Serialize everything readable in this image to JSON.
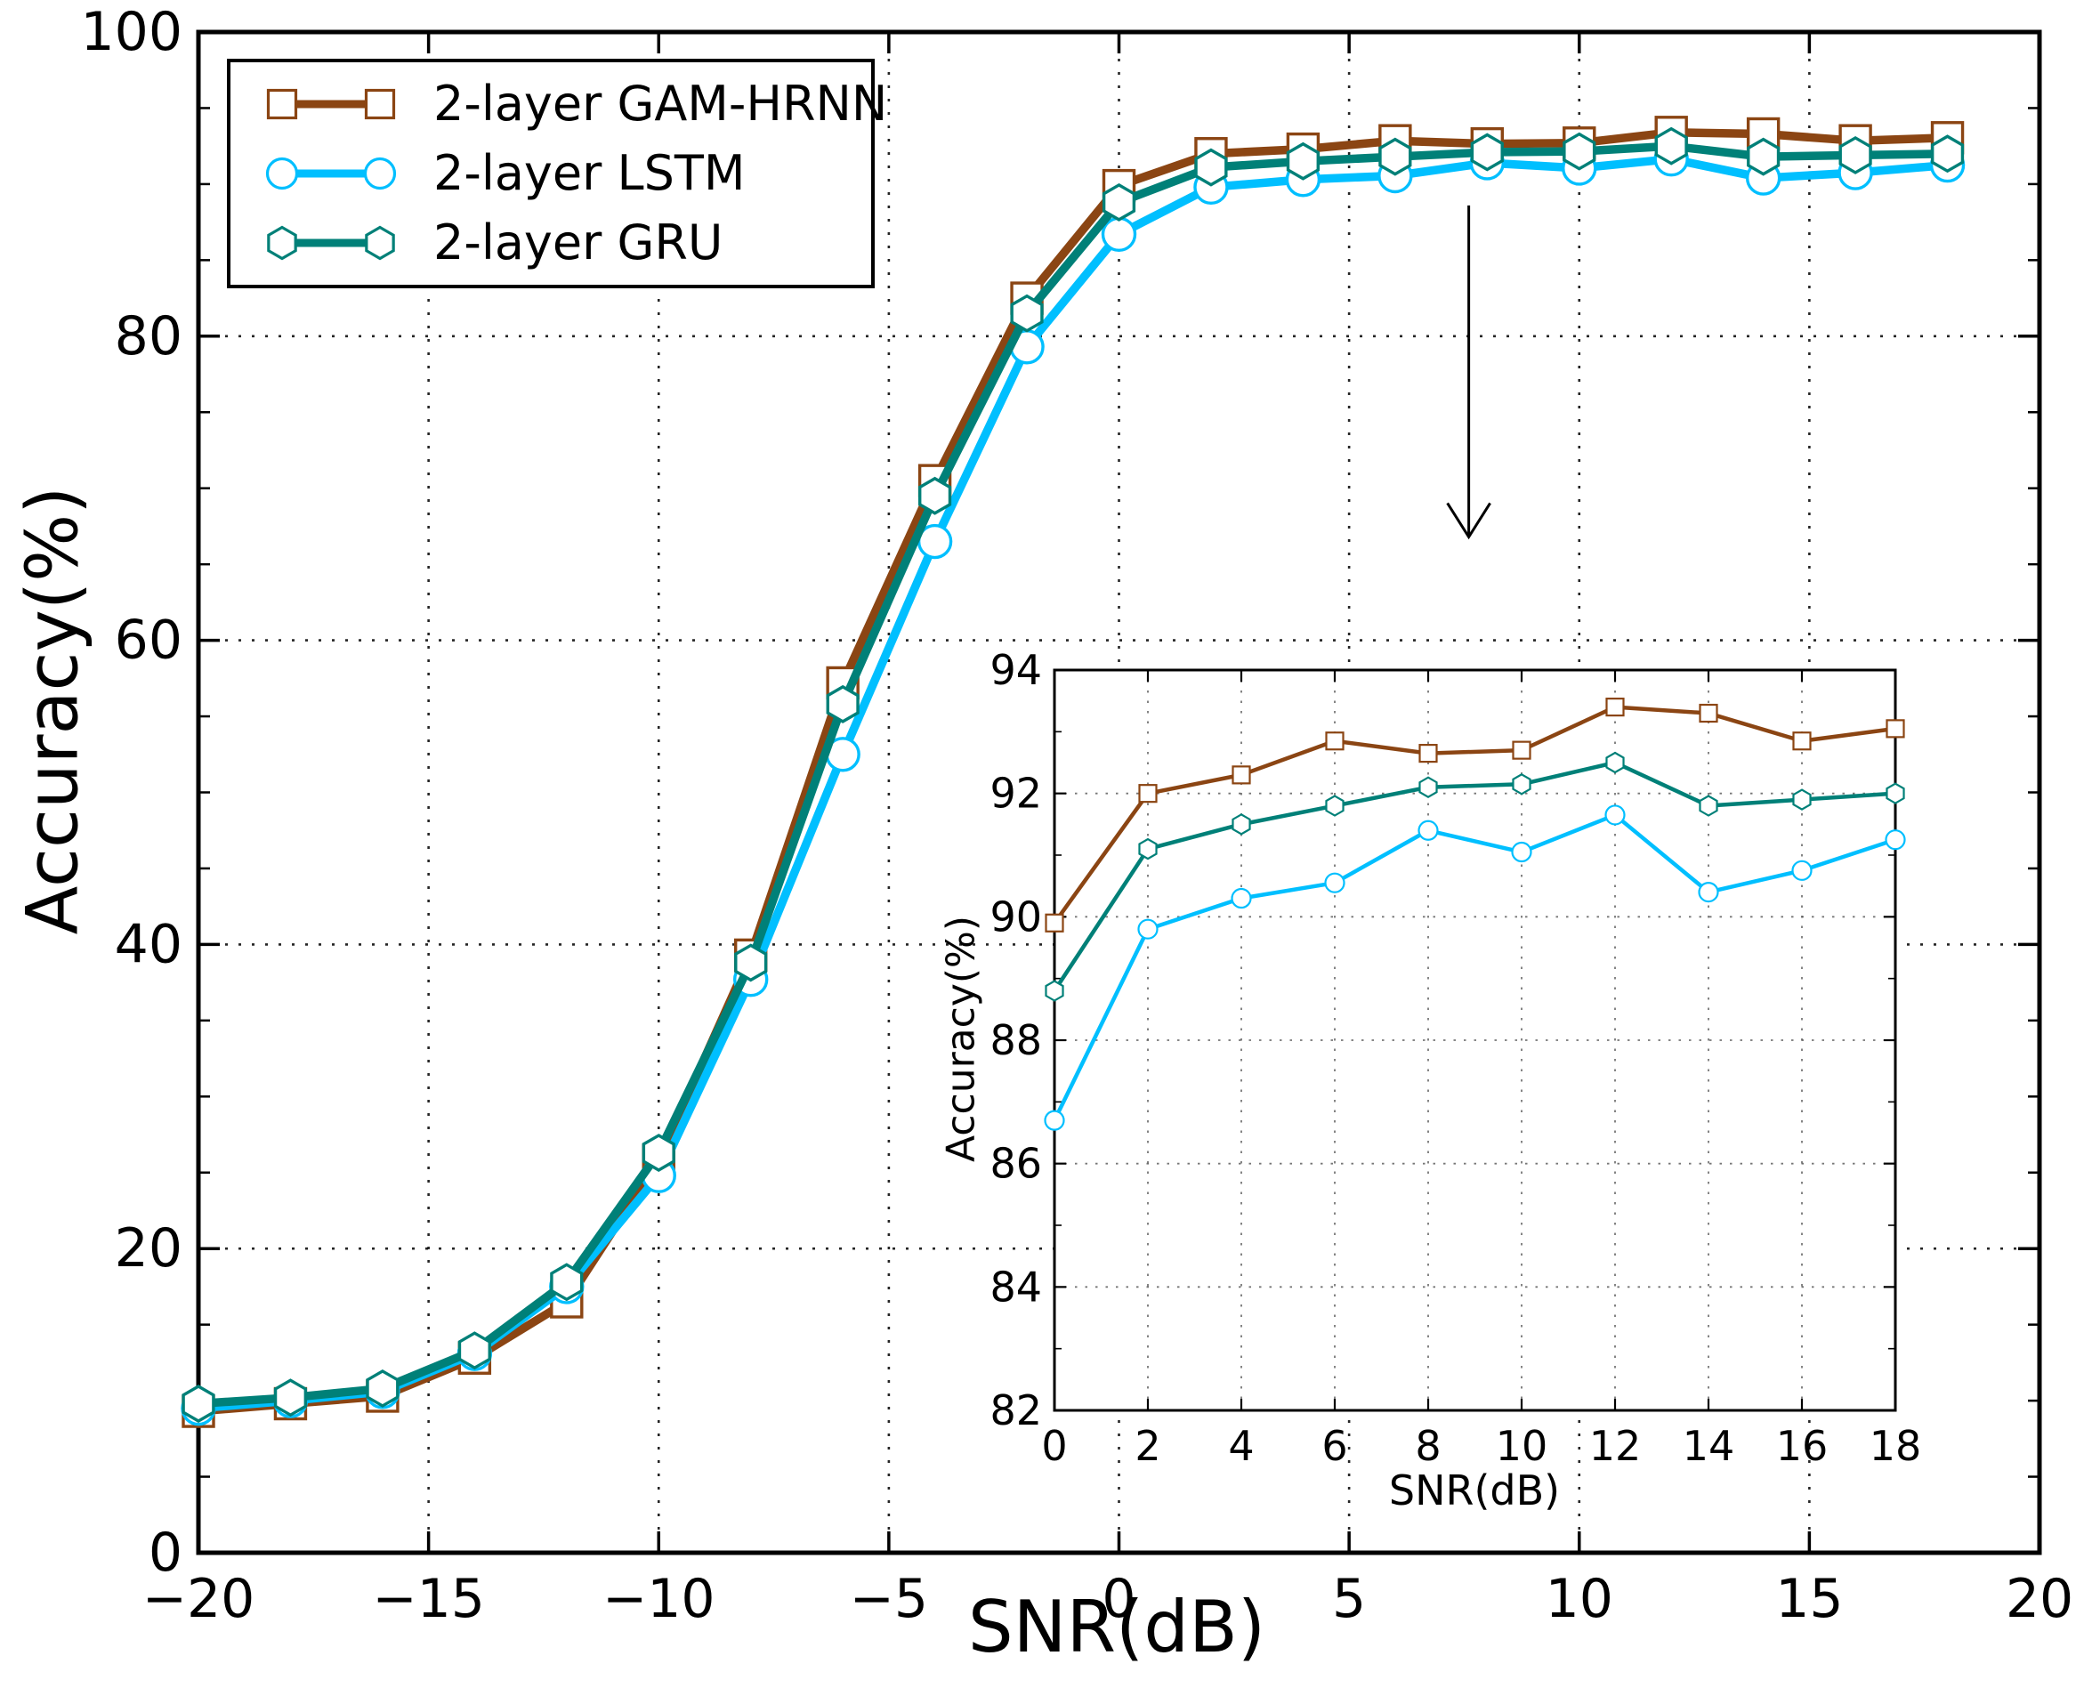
{
  "figure": {
    "title": ""
  },
  "colors": {
    "gam_hrnn": "#8B4513",
    "lstm": "#00BFFF",
    "gru": "#008078",
    "axis": "#000000",
    "background": "#ffffff"
  },
  "legend": {
    "position": "upper left"
  },
  "chart_data": {
    "type": "line",
    "title": "",
    "xlabel": "SNR(dB)",
    "ylabel": "Accuracy(%)",
    "xlim": [
      -20,
      20
    ],
    "ylim": [
      0,
      100
    ],
    "xticks": [
      -20,
      -15,
      -10,
      -5,
      0,
      5,
      10,
      15,
      20
    ],
    "yticks": [
      0,
      20,
      40,
      60,
      80,
      100
    ],
    "y_minor_step": 5,
    "grid": true,
    "x": [
      -20,
      -18,
      -16,
      -14,
      -12,
      -10,
      -8,
      -6,
      -4,
      -2,
      0,
      2,
      4,
      6,
      8,
      10,
      12,
      14,
      16,
      18
    ],
    "series": [
      {
        "name": "2-layer GAM-HRNN",
        "color": "#8B4513",
        "marker": "square",
        "values": [
          9.3,
          9.8,
          10.3,
          12.8,
          16.5,
          25.8,
          39.3,
          57.2,
          70.5,
          82.5,
          89.9,
          92.0,
          92.3,
          92.85,
          92.65,
          92.7,
          93.4,
          93.3,
          92.85,
          93.05
        ]
      },
      {
        "name": "2-layer LSTM",
        "color": "#00BFFF",
        "marker": "circle",
        "values": [
          9.5,
          10.0,
          10.6,
          13.1,
          17.5,
          24.8,
          37.7,
          52.5,
          66.5,
          79.3,
          86.7,
          89.8,
          90.3,
          90.55,
          91.4,
          91.05,
          91.65,
          90.4,
          90.75,
          91.25
        ]
      },
      {
        "name": "2-layer GRU",
        "color": "#008078",
        "marker": "hexagon",
        "values": [
          9.8,
          10.2,
          10.8,
          13.3,
          17.8,
          26.3,
          38.8,
          55.8,
          69.5,
          81.5,
          88.8,
          91.1,
          91.5,
          91.8,
          92.1,
          92.15,
          92.5,
          91.8,
          91.9,
          92.0
        ]
      }
    ],
    "inset": {
      "xlabel": "SNR(dB)",
      "ylabel": "Accuracy(%)",
      "xlim": [
        0,
        18
      ],
      "ylim": [
        82,
        94
      ],
      "xticks": [
        0,
        2,
        4,
        6,
        8,
        10,
        12,
        14,
        16,
        18
      ],
      "yticks": [
        82,
        84,
        86,
        88,
        90,
        92,
        94
      ],
      "y_minor_step": 1,
      "grid": true,
      "x": [
        0,
        2,
        4,
        6,
        8,
        10,
        12,
        14,
        16,
        18
      ],
      "series": [
        {
          "name": "2-layer GAM-HRNN",
          "color": "#8B4513",
          "marker": "square",
          "values": [
            89.9,
            92.0,
            92.3,
            92.85,
            92.65,
            92.7,
            93.4,
            93.3,
            92.85,
            93.05
          ]
        },
        {
          "name": "2-layer LSTM",
          "color": "#00BFFF",
          "marker": "circle",
          "values": [
            86.7,
            89.8,
            90.3,
            90.55,
            91.4,
            91.05,
            91.65,
            90.4,
            90.75,
            91.25
          ]
        },
        {
          "name": "2-layer GRU",
          "color": "#008078",
          "marker": "hexagon",
          "values": [
            88.8,
            91.1,
            91.5,
            91.8,
            92.1,
            92.15,
            92.5,
            91.8,
            91.9,
            92.0
          ]
        }
      ]
    },
    "annotation_arrow": {
      "x_db": 7.6,
      "y_from_pct": 88.6,
      "y_to_pct": 66.8
    }
  }
}
